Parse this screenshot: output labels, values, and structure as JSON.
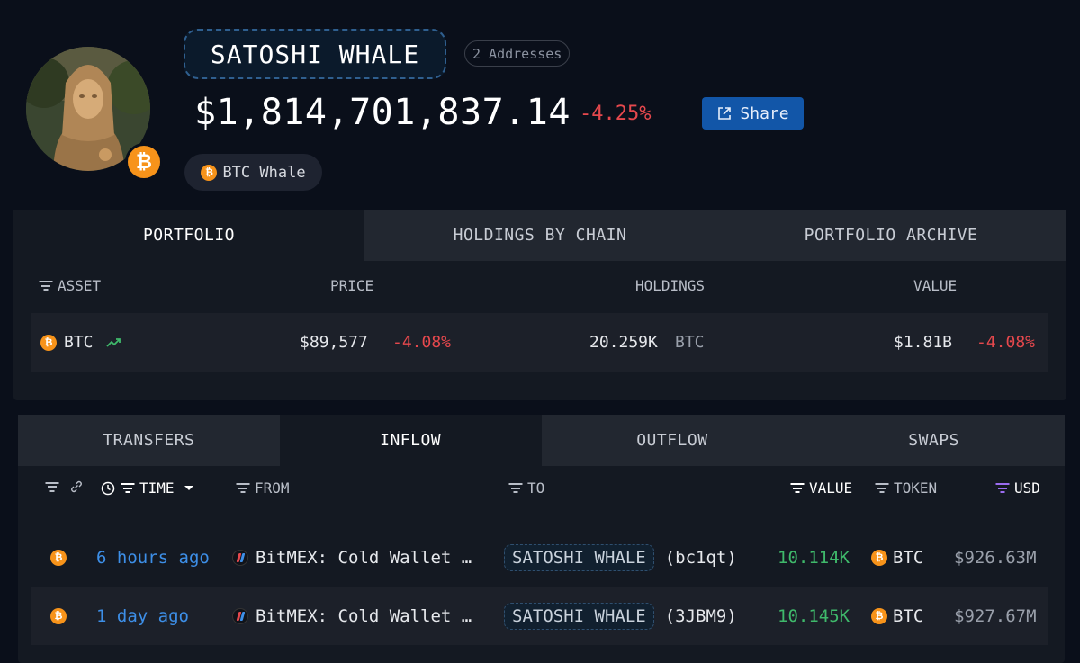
{
  "header": {
    "entity_name": "SATOSHI WHALE",
    "addresses_label": "2 Addresses",
    "total_value": "$1,814,701,837.14",
    "total_change": "-4.25%",
    "share_label": "Share",
    "tag_label": "BTC Whale",
    "badge_symbol": "₿"
  },
  "portfolio": {
    "tabs": [
      {
        "label": "PORTFOLIO",
        "active": true
      },
      {
        "label": "HOLDINGS BY CHAIN",
        "active": false
      },
      {
        "label": "PORTFOLIO ARCHIVE",
        "active": false
      }
    ],
    "columns": {
      "asset": "ASSET",
      "price": "PRICE",
      "holdings": "HOLDINGS",
      "value": "VALUE"
    },
    "rows": [
      {
        "asset": "BTC",
        "price": "$89,577",
        "price_change": "-4.08%",
        "holdings": "20.259K",
        "holdings_unit": "BTC",
        "value": "$1.81B",
        "value_change": "-4.08%"
      }
    ]
  },
  "transfers": {
    "tabs": [
      {
        "label": "TRANSFERS",
        "active": false
      },
      {
        "label": "INFLOW",
        "active": true
      },
      {
        "label": "OUTFLOW",
        "active": false
      },
      {
        "label": "SWAPS",
        "active": false
      }
    ],
    "columns": {
      "time": "TIME",
      "from": "FROM",
      "to": "TO",
      "value": "VALUE",
      "token": "TOKEN",
      "usd": "USD"
    },
    "rows": [
      {
        "time": "6 hours ago",
        "from": "BitMEX: Cold Wallet …",
        "to_entity": "SATOSHI WHALE",
        "to_addr": "(bc1qt)",
        "value": "10.114K",
        "token": "BTC",
        "usd": "$926.63M"
      },
      {
        "time": "1 day ago",
        "from": "BitMEX: Cold Wallet …",
        "to_entity": "SATOSHI WHALE",
        "to_addr": "(3JBM9)",
        "value": "10.145K",
        "token": "BTC",
        "usd": "$927.67M"
      }
    ]
  },
  "colors": {
    "background": "#0a0f1a",
    "accent_blue": "#1256a8",
    "negative": "#e5484d",
    "positive": "#3fb96b",
    "bitcoin": "#f7931a",
    "link": "#3d8fe8"
  }
}
